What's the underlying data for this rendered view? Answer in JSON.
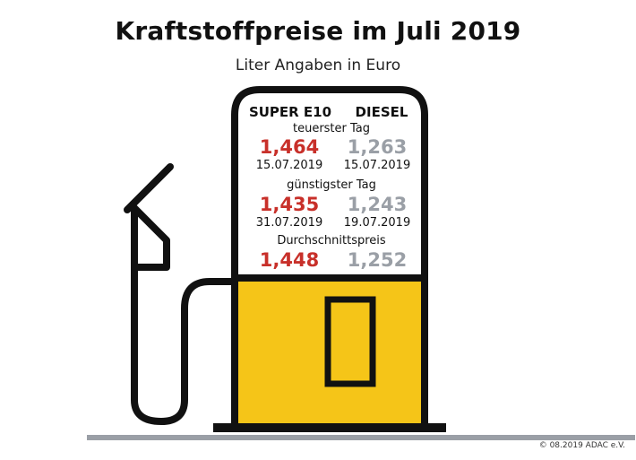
{
  "header": {
    "title": "Kraftstoffpreise im Juli 2019",
    "subtitle": "Liter Angaben in Euro"
  },
  "columns": {
    "super": "SUPER E10",
    "diesel": "DIESEL"
  },
  "sections": {
    "most_expensive": {
      "label": "teuerster Tag",
      "super_price": "1,464",
      "super_date": "15.07.2019",
      "diesel_price": "1,263",
      "diesel_date": "15.07.2019"
    },
    "cheapest": {
      "label": "günstigster Tag",
      "super_price": "1,435",
      "super_date": "31.07.2019",
      "diesel_price": "1,243",
      "diesel_date": "19.07.2019"
    },
    "average": {
      "label": "Durchschnittspreis",
      "super_price": "1,448",
      "diesel_price": "1,252"
    }
  },
  "footer": {
    "copyright": "© 08.2019 ADAC e.V."
  },
  "colors": {
    "super": "#c8302a",
    "diesel": "#9a9fa6",
    "pump_yellow": "#f5c518",
    "outline": "#111111",
    "ground": "#9a9fa6"
  },
  "icons": [
    "fuel-pump-icon",
    "fuel-nozzle-icon",
    "fuel-hose-icon"
  ]
}
